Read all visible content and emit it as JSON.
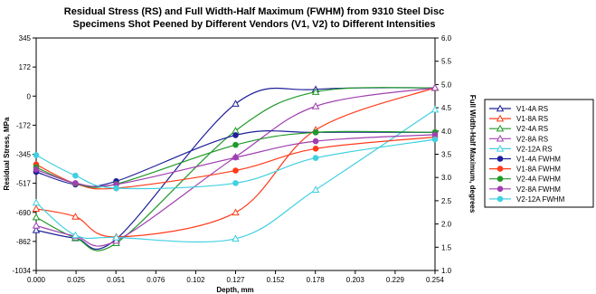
{
  "chart_data": {
    "type": "line",
    "title_line1": "Residual Stress (RS) and Full Width-Half Maximum (FWHM) from 9310 Steel Disc",
    "title_line2": "Specimens Shot Peened by Different Vendors (V1, V2) to Different Intensities",
    "xlabel": "Depth, mm",
    "ylabel_left": "Residual Stress, MPa",
    "ylabel_right": "Full Width-Half Maximum, degrees",
    "x_ticks": [
      "0.000",
      "0.025",
      "0.051",
      "0.076",
      "0.102",
      "0.127",
      "0.152",
      "0.178",
      "0.203",
      "0.229",
      "0.254"
    ],
    "y_left_ticks": [
      "345",
      "172",
      "0",
      "-172",
      "-345",
      "-517",
      "-690",
      "-862",
      "-1034"
    ],
    "y_right_ticks": [
      "6.0",
      "5.5",
      "5.0",
      "4.5",
      "4.0",
      "3.5",
      "3.0",
      "2.5",
      "2.0",
      "1.5",
      "1.0"
    ],
    "xlim": [
      0,
      0.254
    ],
    "ylim_left": [
      -1034,
      345
    ],
    "ylim_right": [
      1.0,
      6.0
    ],
    "grid": false,
    "legend_position": "right",
    "series": [
      {
        "name": "V1-4A RS",
        "axis": "left",
        "marker": "triangle",
        "color": "#1f1f9a",
        "x": [
          0,
          0.025,
          0.051,
          0.127,
          0.178,
          0.254
        ],
        "y": [
          -795,
          -842,
          -848,
          -45,
          40,
          50
        ]
      },
      {
        "name": "V1-8A RS",
        "axis": "left",
        "marker": "triangle",
        "color": "#ff3b1a",
        "x": [
          0,
          0.025,
          0.051,
          0.127,
          0.178,
          0.254
        ],
        "y": [
          -668,
          -715,
          -835,
          -690,
          -200,
          50
        ]
      },
      {
        "name": "V2-4A RS",
        "axis": "left",
        "marker": "triangle",
        "color": "#1e9a28",
        "x": [
          0,
          0.025,
          0.051,
          0.127,
          0.178,
          0.254
        ],
        "y": [
          -718,
          -840,
          -872,
          -205,
          25,
          50
        ]
      },
      {
        "name": "V2-8A RS",
        "axis": "left",
        "marker": "triangle",
        "color": "#a040b0",
        "x": [
          0,
          0.025,
          0.051,
          0.127,
          0.178,
          0.254
        ],
        "y": [
          -768,
          -830,
          -858,
          -360,
          -60,
          50
        ]
      },
      {
        "name": "V2-12A RS",
        "axis": "left",
        "marker": "triangle",
        "color": "#40d0e0",
        "x": [
          0,
          0.025,
          0.051,
          0.127,
          0.178,
          0.254
        ],
        "y": [
          -632,
          -825,
          -838,
          -845,
          -555,
          -80
        ]
      },
      {
        "name": "V1-4A FWHM",
        "axis": "right",
        "marker": "circle",
        "color": "#1f1f9a",
        "x": [
          0,
          0.025,
          0.051,
          0.127,
          0.178,
          0.254
        ],
        "y": [
          3.12,
          2.85,
          2.92,
          3.91,
          3.97,
          3.97
        ]
      },
      {
        "name": "V1-8A FWHM",
        "axis": "right",
        "marker": "circle",
        "color": "#ff3b1a",
        "x": [
          0,
          0.025,
          0.051,
          0.127,
          0.178,
          0.254
        ],
        "y": [
          3.28,
          2.87,
          2.77,
          3.15,
          3.62,
          3.87
        ]
      },
      {
        "name": "V2-4A FWHM",
        "axis": "right",
        "marker": "circle",
        "color": "#1e9a28",
        "x": [
          0,
          0.025,
          0.051,
          0.127,
          0.178,
          0.254
        ],
        "y": [
          3.22,
          2.87,
          2.86,
          3.7,
          3.97,
          3.97
        ]
      },
      {
        "name": "V2-8A FWHM",
        "axis": "right",
        "marker": "circle",
        "color": "#a040b0",
        "x": [
          0,
          0.025,
          0.051,
          0.127,
          0.178,
          0.254
        ],
        "y": [
          3.17,
          2.88,
          2.85,
          3.43,
          3.78,
          3.92
        ]
      },
      {
        "name": "V2-12A FWHM",
        "axis": "right",
        "marker": "circle",
        "color": "#40d0e0",
        "x": [
          0,
          0.025,
          0.051,
          0.127,
          0.178,
          0.254
        ],
        "y": [
          3.48,
          3.04,
          2.77,
          2.88,
          3.42,
          3.82
        ]
      }
    ]
  }
}
